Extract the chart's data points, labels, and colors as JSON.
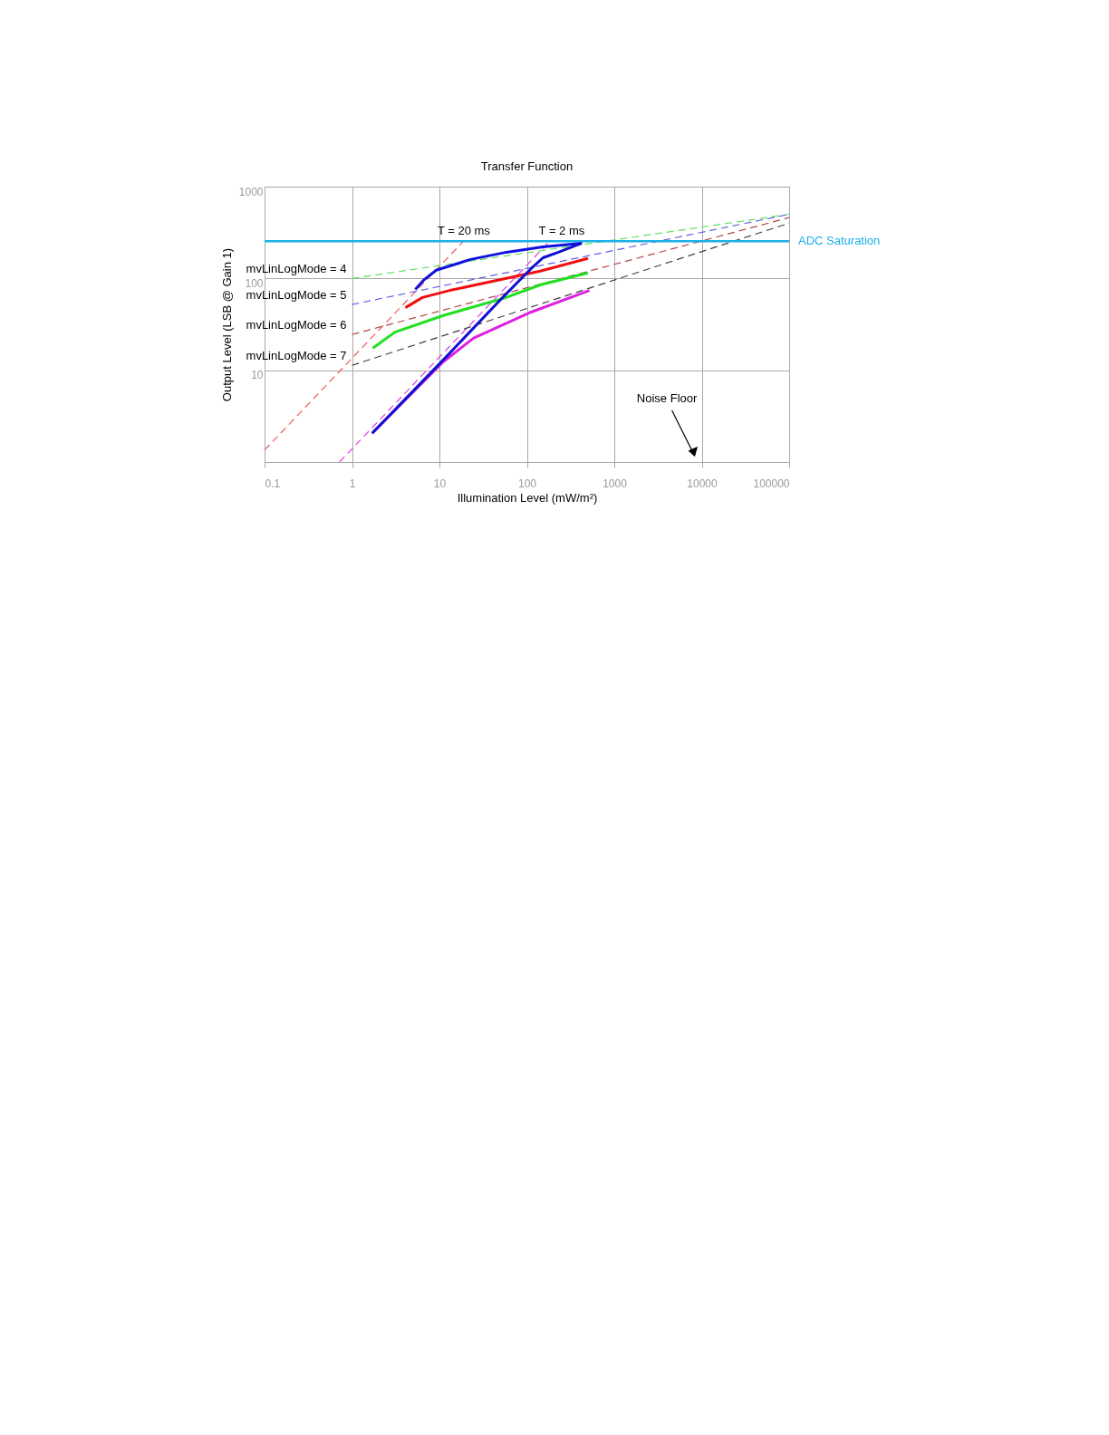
{
  "chart_data": {
    "type": "line",
    "title": "Transfer Function",
    "xlabel": "Illumination Level (mW/m²)",
    "ylabel": "Output Level (LSB @ Gain 1)",
    "log": "xy",
    "xlim": [
      0.1,
      100000
    ],
    "ylim": [
      1,
      1000
    ],
    "xticks": [
      0.1,
      1,
      10,
      100,
      1000,
      10000,
      100000
    ],
    "yticks": [
      10,
      100,
      1000
    ],
    "grid": true,
    "legend": false,
    "marker": "none",
    "series": [
      {
        "color": "#f05a5a",
        "line_style": "dashed",
        "x": [
          0.1,
          18.9
        ],
        "values": [
          1.35,
          255
        ]
      },
      {
        "color": "#e040e0",
        "line_style": "dashed",
        "x": [
          0.72,
          183
        ],
        "values": [
          1,
          255
        ]
      },
      {
        "color": "#60e060",
        "line_style": "dashed",
        "x": [
          1,
          100000
        ],
        "values": [
          100,
          500
        ]
      },
      {
        "color": "#6060e0",
        "line_style": "dashed",
        "x": [
          1,
          100000
        ],
        "values": [
          52,
          500
        ]
      },
      {
        "color": "#b04848",
        "line_style": "dashed",
        "x": [
          1,
          100000
        ],
        "values": [
          24.5,
          460
        ]
      },
      {
        "color": "#404040",
        "line_style": "dashed",
        "x": [
          1,
          100000
        ],
        "values": [
          11.3,
          400
        ]
      },
      {
        "color": "#1010e0",
        "line_style": "solid",
        "x": [
          5.3,
          6.6,
          9.2,
          22.7,
          58.6,
          153,
          425
        ],
        "values": [
          76,
          96,
          123,
          161,
          193,
          221,
          242
        ]
      },
      {
        "color": "#f01010",
        "line_style": "solid",
        "x": [
          4.08,
          6.4,
          13.1,
          142,
          500
        ],
        "values": [
          48,
          62,
          74,
          120,
          165
        ]
      },
      {
        "color": "#20e020",
        "line_style": "solid",
        "x": [
          1.73,
          3.1,
          11.1,
          55,
          142,
          500
        ],
        "values": [
          17.4,
          26,
          39.5,
          61,
          85,
          115
        ]
      },
      {
        "color": "#e020e0",
        "line_style": "solid",
        "x": [
          1.7,
          11.1,
          24.4,
          112,
          520
        ],
        "values": [
          2.06,
          12.4,
          22.3,
          43,
          74
        ]
      },
      {
        "color": "#1010d0",
        "line_style": "solid",
        "x": [
          1.7,
          11.1,
          52,
          112,
          153,
          230,
          425
        ],
        "values": [
          2.06,
          13,
          61,
          128,
          168,
          193,
          242
        ]
      }
    ],
    "ref_lines": [
      {
        "axis": "y",
        "value": 255,
        "label": "ADC Saturation",
        "color": "#1ab0e8"
      }
    ],
    "annotations": [
      {
        "text": "T = 20 ms",
        "x": 19,
        "y": 255
      },
      {
        "text": "T = 2 ms",
        "x": 250,
        "y": 255
      },
      {
        "text": "mvLinLogMode = 4",
        "x": 1,
        "y": 100
      },
      {
        "text": "mvLinLogMode = 5",
        "x": 1,
        "y": 52
      },
      {
        "text": "mvLinLogMode = 6",
        "x": 1,
        "y": 24.5
      },
      {
        "text": "mvLinLogMode = 7",
        "x": 1,
        "y": 11.3
      },
      "Noise Floor"
    ]
  }
}
